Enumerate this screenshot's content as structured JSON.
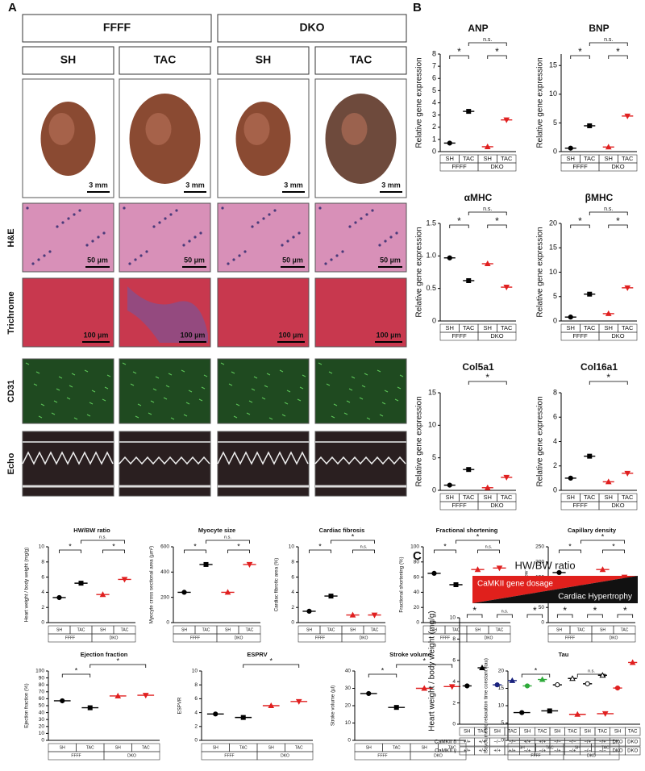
{
  "panel_labels": [
    "A",
    "B",
    "C"
  ],
  "panel_a": {
    "genotypes": [
      "FFFF",
      "DKO"
    ],
    "conditions": [
      "SH",
      "TAC",
      "SH",
      "TAC"
    ],
    "row_labels": [
      "H&E",
      "Trichrome",
      "CD31",
      "Echo"
    ],
    "scale_bars": [
      [
        "3 mm",
        "3 mm",
        "3 mm",
        "3 mm"
      ],
      [
        "50 µm",
        "50 µm",
        "50 µm",
        "50 µm"
      ],
      [
        "100 µm",
        "100 µm",
        "100 µm",
        "100 µm"
      ]
    ]
  },
  "chart_data": [
    {
      "type": "dot",
      "title": "ANP",
      "ylabel": "Relative gene expression",
      "categories": [
        "SH",
        "TAC",
        "SH",
        "TAC"
      ],
      "groups": [
        "FFFF",
        "DKO"
      ],
      "values": [
        0.7,
        3.3,
        0.4,
        2.6
      ],
      "colors": [
        "#000000",
        "#000000",
        "#e02020",
        "#e02020"
      ],
      "ylim": [
        0,
        8
      ],
      "yticks": [
        0,
        1,
        2,
        3,
        4,
        5,
        6,
        7,
        8
      ],
      "brackets": [
        {
          "label": "*",
          "pair": [
            0,
            1
          ]
        },
        {
          "label": "n.s.",
          "pair": [
            1,
            3
          ]
        },
        {
          "label": "*",
          "pair": [
            2,
            3
          ]
        }
      ]
    },
    {
      "type": "dot",
      "title": "BNP",
      "ylabel": "Relative gene expression",
      "categories": [
        "SH",
        "TAC",
        "SH",
        "TAC"
      ],
      "groups": [
        "FFFF",
        "DKO"
      ],
      "values": [
        0.6,
        4.5,
        0.8,
        6.2
      ],
      "colors": [
        "#000000",
        "#000000",
        "#e02020",
        "#e02020"
      ],
      "ylim": [
        0,
        17
      ],
      "yticks": [
        0,
        5,
        10,
        15
      ],
      "brackets": [
        {
          "label": "*",
          "pair": [
            0,
            1
          ]
        },
        {
          "label": "n.s.",
          "pair": [
            1,
            3
          ]
        },
        {
          "label": "*",
          "pair": [
            2,
            3
          ]
        }
      ]
    },
    {
      "type": "dot",
      "title": "αMHC",
      "ylabel": "Relative gene expression",
      "categories": [
        "SH",
        "TAC",
        "SH",
        "TAC"
      ],
      "groups": [
        "FFFF",
        "DKO"
      ],
      "values": [
        0.97,
        0.62,
        0.88,
        0.52
      ],
      "colors": [
        "#000000",
        "#000000",
        "#e02020",
        "#e02020"
      ],
      "ylim": [
        0,
        1.5
      ],
      "yticks": [
        0,
        0.5,
        {
          "value": 1,
          "label": "1.0"
        },
        1.5
      ],
      "brackets": [
        {
          "label": "*",
          "pair": [
            0,
            1
          ]
        },
        {
          "label": "n.s.",
          "pair": [
            1,
            3
          ]
        },
        {
          "label": "*",
          "pair": [
            2,
            3
          ]
        }
      ]
    },
    {
      "type": "dot",
      "title": "βMHC",
      "ylabel": "Relative gene expression",
      "categories": [
        "SH",
        "TAC",
        "SH",
        "TAC"
      ],
      "groups": [
        "FFFF",
        "DKO"
      ],
      "values": [
        0.8,
        5.5,
        1.5,
        6.8
      ],
      "colors": [
        "#000000",
        "#000000",
        "#e02020",
        "#e02020"
      ],
      "ylim": [
        0,
        20
      ],
      "yticks": [
        0,
        5,
        10,
        15,
        20
      ],
      "brackets": [
        {
          "label": "*",
          "pair": [
            0,
            1
          ]
        },
        {
          "label": "n.s.",
          "pair": [
            1,
            3
          ]
        },
        {
          "label": "*",
          "pair": [
            2,
            3
          ]
        }
      ]
    },
    {
      "type": "dot",
      "title": "Col5a1",
      "ylabel": "Relative gene expression",
      "categories": [
        "SH",
        "TAC",
        "SH",
        "TAC"
      ],
      "groups": [
        "FFFF",
        "DKO"
      ],
      "values": [
        0.8,
        3.2,
        0.4,
        2.0
      ],
      "colors": [
        "#000000",
        "#000000",
        "#e02020",
        "#e02020"
      ],
      "ylim": [
        0,
        15
      ],
      "yticks": [
        0,
        5,
        10,
        15
      ],
      "brackets": [
        {
          "label": "*",
          "pair": [
            1,
            3
          ]
        }
      ]
    },
    {
      "type": "dot",
      "title": "Col16a1",
      "ylabel": "Relative gene expression",
      "categories": [
        "SH",
        "TAC",
        "SH",
        "TAC"
      ],
      "groups": [
        "FFFF",
        "DKO"
      ],
      "values": [
        1.0,
        2.8,
        0.7,
        1.4
      ],
      "colors": [
        "#000000",
        "#000000",
        "#e02020",
        "#e02020"
      ],
      "ylim": [
        0,
        8
      ],
      "yticks": [
        0,
        2,
        4,
        6,
        8
      ],
      "brackets": [
        {
          "label": "*",
          "pair": [
            1,
            3
          ]
        }
      ]
    },
    {
      "type": "dot",
      "title": "HW/BW ratio",
      "ylabel": "Heart weight / body weight (mg/g)",
      "categories": [
        "SH",
        "TAC",
        "SH",
        "TAC"
      ],
      "groups": [
        "FFFF",
        "DKO"
      ],
      "values": [
        3.3,
        5.2,
        3.7,
        5.7
      ],
      "colors": [
        "#000000",
        "#000000",
        "#e02020",
        "#e02020"
      ],
      "ylim": [
        0,
        10
      ],
      "yticks": [
        0,
        2,
        4,
        6,
        8,
        10
      ],
      "brackets": [
        {
          "label": "*",
          "pair": [
            0,
            1
          ]
        },
        {
          "label": "n.s.",
          "pair": [
            1,
            3
          ]
        },
        {
          "label": "*",
          "pair": [
            2,
            3
          ]
        }
      ]
    },
    {
      "type": "dot",
      "title": "Myocyte size",
      "ylabel": "Myocyte cross sectional area (µm²)",
      "categories": [
        "SH",
        "TAC",
        "SH",
        "TAC"
      ],
      "groups": [
        "FFFF",
        "DKO"
      ],
      "values": [
        240,
        460,
        240,
        460
      ],
      "colors": [
        "#000000",
        "#000000",
        "#e02020",
        "#e02020"
      ],
      "ylim": [
        0,
        600
      ],
      "yticks": [
        0,
        200,
        400,
        600
      ],
      "brackets": [
        {
          "label": "*",
          "pair": [
            0,
            1
          ]
        },
        {
          "label": "n.s.",
          "pair": [
            1,
            3
          ]
        },
        {
          "label": "*",
          "pair": [
            2,
            3
          ]
        }
      ]
    },
    {
      "type": "dot",
      "title": "Cardiac fibrosis",
      "ylabel": "Cardiac fibrotic area (%)",
      "categories": [
        "SH",
        "TAC",
        "SH",
        "TAC"
      ],
      "groups": [
        "FFFF",
        "DKO"
      ],
      "values": [
        1.5,
        3.5,
        1.0,
        1.0
      ],
      "colors": [
        "#000000",
        "#000000",
        "#e02020",
        "#e02020"
      ],
      "ylim": [
        0,
        10
      ],
      "yticks": [
        0,
        2,
        4,
        6,
        8,
        10
      ],
      "brackets": [
        {
          "label": "*",
          "pair": [
            0,
            1
          ]
        },
        {
          "label": "*",
          "pair": [
            1,
            3
          ]
        },
        {
          "label": "n.s.",
          "pair": [
            2,
            3
          ]
        }
      ]
    },
    {
      "type": "dot",
      "title": "Fractional shortening",
      "ylabel": "Fractional shortening (%)",
      "categories": [
        "SH",
        "TAC",
        "SH",
        "TAC"
      ],
      "groups": [
        "FFFF",
        "DKO"
      ],
      "values": [
        65,
        50,
        70,
        72
      ],
      "colors": [
        "#000000",
        "#000000",
        "#e02020",
        "#e02020"
      ],
      "ylim": [
        0,
        100
      ],
      "yticks": [
        0,
        20,
        40,
        60,
        80,
        100
      ],
      "brackets": [
        {
          "label": "*",
          "pair": [
            0,
            1
          ]
        },
        {
          "label": "*",
          "pair": [
            1,
            3
          ]
        },
        {
          "label": "n.s.",
          "pair": [
            2,
            3
          ]
        }
      ]
    },
    {
      "type": "dot",
      "title": "Capillary density",
      "ylabel": "vessels/view",
      "categories": [
        "SH",
        "TAC",
        "SH",
        "TAC"
      ],
      "groups": [
        "FFFF",
        "DKO"
      ],
      "values": [
        165,
        115,
        175,
        150
      ],
      "colors": [
        "#000000",
        "#000000",
        "#e02020",
        "#e02020"
      ],
      "ylim": [
        0,
        250
      ],
      "yticks": [
        0,
        50,
        100,
        150,
        200,
        250
      ],
      "brackets": [
        {
          "label": "*",
          "pair": [
            0,
            1
          ]
        },
        {
          "label": "*",
          "pair": [
            1,
            3
          ]
        },
        {
          "label": "*",
          "pair": [
            2,
            3
          ]
        }
      ]
    },
    {
      "type": "dot",
      "title": "Ejection fraction",
      "ylabel": "Ejection fraction (%)",
      "categories": [
        "SH",
        "TAC",
        "SH",
        "TAC"
      ],
      "groups": [
        "FFFF",
        "DKO"
      ],
      "values": [
        57,
        47,
        64,
        65
      ],
      "colors": [
        "#000000",
        "#000000",
        "#e02020",
        "#e02020"
      ],
      "ylim": [
        0,
        100
      ],
      "yticks": [
        0,
        10,
        20,
        30,
        40,
        50,
        60,
        70,
        80,
        90,
        100
      ],
      "brackets": [
        {
          "label": "*",
          "pair": [
            0,
            1
          ]
        },
        {
          "label": "*",
          "pair": [
            1,
            3
          ]
        }
      ]
    },
    {
      "type": "dot",
      "title": "ESPRV",
      "ylabel": "ESPVR",
      "categories": [
        "SH",
        "TAC",
        "SH",
        "TAC"
      ],
      "groups": [
        "FFFF",
        "DKO"
      ],
      "values": [
        3.8,
        3.3,
        5.0,
        5.6
      ],
      "colors": [
        "#000000",
        "#000000",
        "#e02020",
        "#e02020"
      ],
      "ylim": [
        0,
        10
      ],
      "yticks": [
        0,
        2,
        4,
        6,
        8,
        10
      ],
      "brackets": [
        {
          "label": "*",
          "pair": [
            1,
            3
          ]
        }
      ]
    },
    {
      "type": "dot",
      "title": "Stroke volume",
      "ylabel": "Stroke volume (µl)",
      "categories": [
        "SH",
        "TAC",
        "SH",
        "TAC"
      ],
      "groups": [
        "FFFF",
        "DKO"
      ],
      "values": [
        27,
        19,
        30,
        31
      ],
      "colors": [
        "#000000",
        "#000000",
        "#e02020",
        "#e02020"
      ],
      "ylim": [
        0,
        40
      ],
      "yticks": [
        0,
        10,
        20,
        30,
        40
      ],
      "brackets": [
        {
          "label": "*",
          "pair": [
            0,
            1
          ]
        },
        {
          "label": "*",
          "pair": [
            1,
            3
          ]
        }
      ]
    },
    {
      "type": "dot",
      "title": "Tau",
      "ylabel": "Isovolumetric relaxation time constant (tau)",
      "categories": [
        "SH",
        "TAC",
        "SH",
        "TAC"
      ],
      "groups": [
        "FFFF",
        "DKO"
      ],
      "values": [
        8,
        8.5,
        7.5,
        7.7
      ],
      "colors": [
        "#000000",
        "#000000",
        "#e02020",
        "#e02020"
      ],
      "ylim": [
        0,
        20
      ],
      "yticks": [
        0,
        5,
        10,
        15,
        20
      ],
      "brackets": [
        {
          "label": "*",
          "pair": [
            0,
            1
          ]
        },
        {
          "label": "n.s.",
          "pair": [
            2,
            3
          ]
        }
      ]
    },
    {
      "type": "genotype",
      "title": "HW/BW ratio",
      "banner": [
        "CaMKII gene dosage",
        "Cardiac Hypertrophy"
      ],
      "ylabel": "Heart weight / body weight (mg/g)",
      "categories": [
        "SH",
        "TAC",
        "SH",
        "TAC",
        "SH",
        "TAC",
        "SH",
        "TAC",
        "SH",
        "TAC",
        "SH",
        "TAC"
      ],
      "genotype_rows": [
        {
          "label": "CaMKII δ",
          "values": [
            "+/+",
            "+/+",
            "−/−",
            "−/−",
            "+/+",
            "+/+",
            "−/−",
            "−/−",
            "−/+",
            "−/+",
            "DKO",
            "DKO"
          ]
        },
        {
          "label": "CaMKII γ",
          "values": [
            "+/+",
            "+/+",
            "+/+",
            "+/+",
            "−/+",
            "−/+",
            "−/+",
            "−/+",
            "−/−",
            "−/−",
            "DKO",
            "DKO"
          ]
        }
      ],
      "values": [
        3.6,
        5.3,
        3.7,
        4.1,
        3.6,
        4.2,
        3.7,
        4.3,
        3.8,
        4.6,
        3.4,
        5.8
      ],
      "colors": [
        "#000000",
        "#000000",
        "#1a237e",
        "#1a237e",
        "#2eaa3a",
        "#2eaa3a",
        "#000000",
        "#000000",
        "#000000",
        "#000000",
        "#e02020",
        "#e02020"
      ],
      "ylim": [
        0,
        10
      ],
      "yticks": [
        0,
        2,
        4,
        6,
        8,
        10
      ],
      "brackets": [
        {
          "label": "*",
          "pair": [
            0,
            1
          ]
        },
        {
          "label": "n.s.",
          "pair": [
            2,
            3
          ]
        },
        {
          "label": "*",
          "pair": [
            4,
            5
          ]
        },
        {
          "label": "*",
          "pair": [
            6,
            7
          ]
        },
        {
          "label": "*",
          "pair": [
            8,
            9
          ]
        },
        {
          "label": "*",
          "pair": [
            10,
            11
          ]
        }
      ]
    }
  ]
}
